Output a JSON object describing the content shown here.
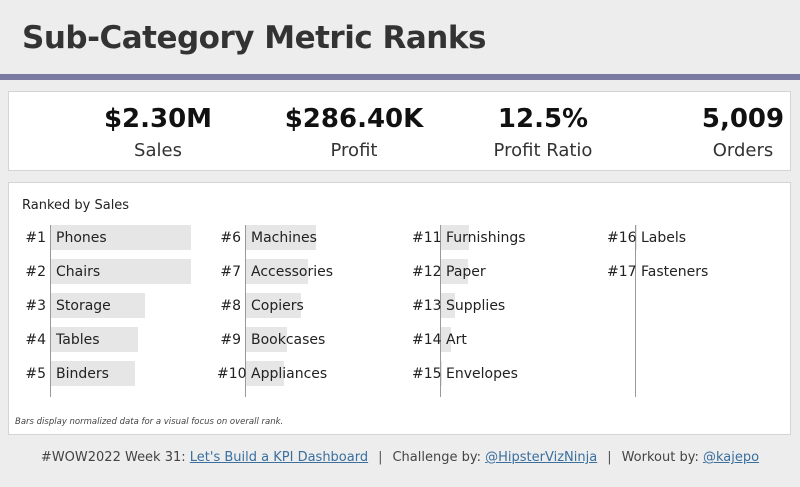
{
  "header": {
    "title": "Sub-Category Metric Ranks"
  },
  "kpis": [
    {
      "value": "$2.30M",
      "label": "Sales"
    },
    {
      "value": "$286.40K",
      "label": "Profit"
    },
    {
      "value": "12.5%",
      "label": "Profit Ratio"
    },
    {
      "value": "5,009",
      "label": "Orders"
    }
  ],
  "chart_data": {
    "type": "bar",
    "title": "Ranked by Sales",
    "note": "Bars display normalized data for a visual focus on overall rank.",
    "value_range": [
      0,
      1
    ],
    "items": [
      {
        "rank": "#1",
        "name": "Phones",
        "norm": 1.0
      },
      {
        "rank": "#2",
        "name": "Chairs",
        "norm": 1.0
      },
      {
        "rank": "#3",
        "name": "Storage",
        "norm": 0.67
      },
      {
        "rank": "#4",
        "name": "Tables",
        "norm": 0.62
      },
      {
        "rank": "#5",
        "name": "Binders",
        "norm": 0.6
      },
      {
        "rank": "#6",
        "name": "Machines",
        "norm": 0.5
      },
      {
        "rank": "#7",
        "name": "Accessories",
        "norm": 0.44
      },
      {
        "rank": "#8",
        "name": "Copiers",
        "norm": 0.39
      },
      {
        "rank": "#9",
        "name": "Bookcases",
        "norm": 0.29
      },
      {
        "rank": "#10",
        "name": "Appliances",
        "norm": 0.27
      },
      {
        "rank": "#11",
        "name": "Furnishings",
        "norm": 0.2
      },
      {
        "rank": "#12",
        "name": "Paper",
        "norm": 0.19
      },
      {
        "rank": "#13",
        "name": "Supplies",
        "norm": 0.1
      },
      {
        "rank": "#14",
        "name": "Art",
        "norm": 0.07
      },
      {
        "rank": "#15",
        "name": "Envelopes",
        "norm": 0.01
      },
      {
        "rank": "#16",
        "name": "Labels",
        "norm": 0.01
      },
      {
        "rank": "#17",
        "name": "Fasteners",
        "norm": 0.0
      }
    ]
  },
  "footer": {
    "prefix": "#WOW2022 Week 31: ",
    "week_link": "Let's Build a KPI Dashboard",
    "challenge_label": "Challenge by: ",
    "challenge_link": "@HipsterVizNinja",
    "workout_label": "Workout by: ",
    "workout_link": "@kajepo"
  }
}
